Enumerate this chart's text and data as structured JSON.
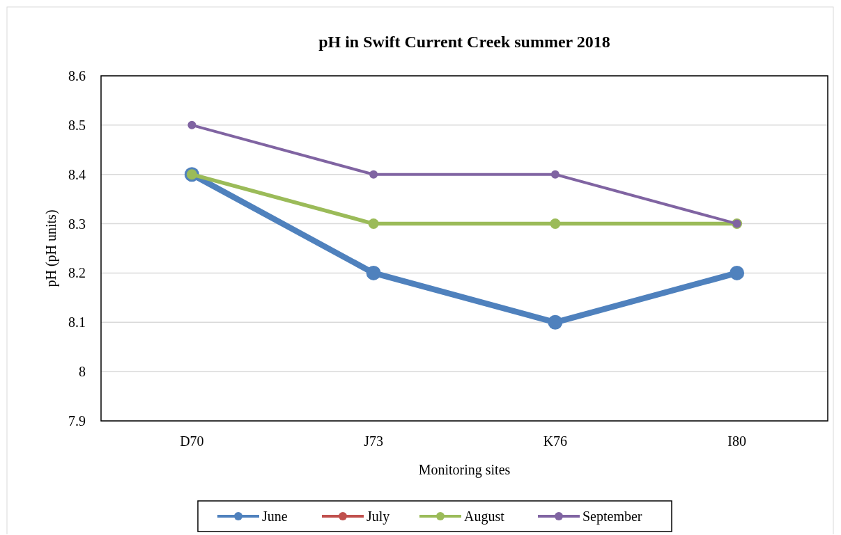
{
  "chart_data": {
    "type": "line",
    "title": "pH in Swift Current Creek summer 2018",
    "xlabel": "Monitoring sites",
    "ylabel": "pH (pH units)",
    "categories": [
      "D70",
      "J73",
      "K76",
      "I80"
    ],
    "series": [
      {
        "name": "June",
        "color": "#4f81bd",
        "values": [
          8.4,
          8.2,
          8.1,
          8.2
        ]
      },
      {
        "name": "July",
        "color": "#c0504d",
        "values": [
          null,
          null,
          null,
          null
        ]
      },
      {
        "name": "August",
        "color": "#9bbb59",
        "values": [
          8.4,
          8.3,
          8.3,
          8.3
        ]
      },
      {
        "name": "September",
        "color": "#8064a2",
        "values": [
          8.5,
          8.4,
          8.4,
          8.3
        ]
      }
    ],
    "ylim": [
      7.9,
      8.6
    ],
    "yticks": [
      7.9,
      8,
      8.1,
      8.2,
      8.3,
      8.4,
      8.5,
      8.6
    ],
    "grid": "y",
    "legend": "bottom",
    "marker": "circle",
    "line_style": "solid"
  }
}
